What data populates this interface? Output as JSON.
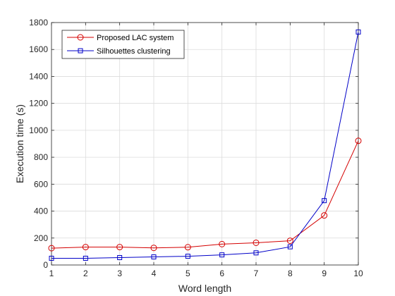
{
  "chart_data": {
    "type": "line",
    "title": "",
    "xlabel": "Word length",
    "ylabel": "Execution time (s)",
    "xlim": [
      1,
      10
    ],
    "ylim": [
      0,
      1800
    ],
    "xticks": [
      1,
      2,
      3,
      4,
      5,
      6,
      7,
      8,
      9,
      10
    ],
    "yticks": [
      0,
      200,
      400,
      600,
      800,
      1000,
      1200,
      1400,
      1600,
      1800
    ],
    "grid": true,
    "legend_position": "top-left",
    "x": [
      1,
      2,
      3,
      4,
      5,
      6,
      7,
      8,
      9,
      10
    ],
    "series": [
      {
        "name": "Proposed LAC system",
        "color": "#d40000",
        "marker": "circle",
        "values": [
          125,
          133,
          133,
          127,
          132,
          155,
          165,
          180,
          368,
          922
        ]
      },
      {
        "name": "Silhouettes clustering",
        "color": "#0000c8",
        "marker": "square",
        "values": [
          50,
          50,
          55,
          60,
          65,
          75,
          90,
          135,
          478,
          1730
        ]
      }
    ]
  }
}
